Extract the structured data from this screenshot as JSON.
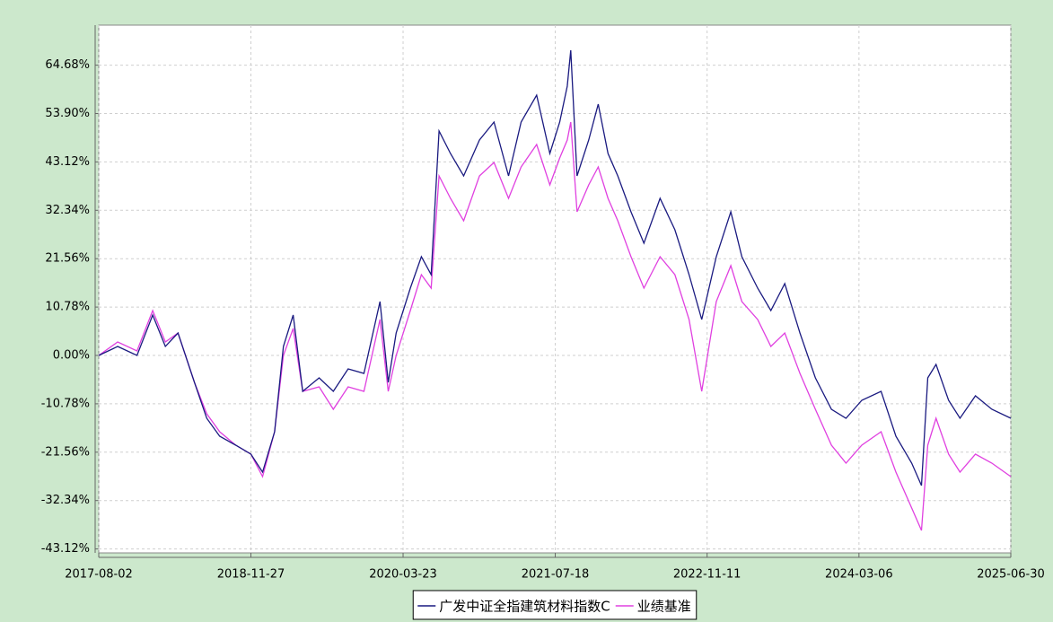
{
  "chart_data": {
    "type": "line",
    "x": [
      "2017-08-02",
      "2017-10-01",
      "2017-12-01",
      "2018-01-20",
      "2018-03-01",
      "2018-04-10",
      "2018-06-01",
      "2018-07-10",
      "2018-08-20",
      "2018-10-10",
      "2018-11-27",
      "2019-01-03",
      "2019-02-10",
      "2019-03-10",
      "2019-04-10",
      "2019-05-10",
      "2019-07-01",
      "2019-08-15",
      "2019-10-01",
      "2019-11-20",
      "2020-01-10",
      "2020-02-05",
      "2020-03-01",
      "2020-04-15",
      "2020-05-20",
      "2020-06-20",
      "2020-07-15",
      "2020-08-20",
      "2020-10-01",
      "2020-11-20",
      "2021-01-05",
      "2021-02-20",
      "2021-04-01",
      "2021-05-20",
      "2021-07-01",
      "2021-08-01",
      "2021-08-25",
      "2021-09-05",
      "2021-09-25",
      "2021-11-01",
      "2021-12-01",
      "2022-01-01",
      "2022-02-01",
      "2022-03-15",
      "2022-04-25",
      "2022-06-15",
      "2022-08-01",
      "2022-09-15",
      "2022-10-25",
      "2022-12-10",
      "2023-01-25",
      "2023-03-01",
      "2023-04-20",
      "2023-06-01",
      "2023-07-15",
      "2023-09-01",
      "2023-10-20",
      "2023-12-10",
      "2024-01-25",
      "2024-03-15",
      "2024-05-15",
      "2024-07-01",
      "2024-08-20",
      "2024-09-20",
      "2024-10-10",
      "2024-11-05",
      "2024-12-15",
      "2025-01-20",
      "2025-03-10",
      "2025-05-01",
      "2025-06-30"
    ],
    "series": [
      {
        "name": "广发中证全指建筑材料指数C",
        "color": "#1a1a80",
        "values": [
          0,
          2,
          0,
          9,
          2,
          5,
          -6,
          -14,
          -18,
          -20,
          -22,
          -26,
          -17,
          2,
          9,
          -8,
          -5,
          -8,
          -3,
          -4,
          12,
          -6,
          5,
          15,
          22,
          18,
          50,
          45,
          40,
          48,
          52,
          40,
          52,
          58,
          45,
          52,
          60,
          68,
          40,
          48,
          56,
          45,
          40,
          32,
          25,
          35,
          28,
          18,
          8,
          22,
          32,
          22,
          15,
          10,
          16,
          5,
          -5,
          -12,
          -14,
          -10,
          -8,
          -18,
          -24,
          -29,
          -5,
          -2,
          -10,
          -14,
          -9,
          -12,
          -14
        ]
      },
      {
        "name": "业绩基准",
        "color": "#e040e0",
        "values": [
          0,
          3,
          1,
          10,
          3,
          5,
          -6,
          -13,
          -17,
          -20,
          -22,
          -27,
          -17,
          0,
          6,
          -8,
          -7,
          -12,
          -7,
          -8,
          8,
          -8,
          0,
          10,
          18,
          15,
          40,
          35,
          30,
          40,
          43,
          35,
          42,
          47,
          38,
          44,
          48,
          52,
          32,
          38,
          42,
          35,
          30,
          22,
          15,
          22,
          18,
          8,
          -8,
          12,
          20,
          12,
          8,
          2,
          5,
          -4,
          -12,
          -20,
          -24,
          -20,
          -17,
          -26,
          -34,
          -39,
          -20,
          -14,
          -22,
          -26,
          -22,
          -24,
          -27
        ]
      }
    ],
    "xlim": [
      "2017-08-02",
      "2025-06-30"
    ],
    "xticks": [
      "2017-08-02",
      "2018-11-27",
      "2020-03-23",
      "2021-07-18",
      "2022-11-11",
      "2024-03-06",
      "2025-06-30"
    ],
    "ylim": [
      -44,
      73.6
    ],
    "yticks": [
      {
        "value": -43.12,
        "label": "-43.12%"
      },
      {
        "value": -32.34,
        "label": "-32.34%"
      },
      {
        "value": -21.56,
        "label": "-21.56%"
      },
      {
        "value": -10.78,
        "label": "-10.78%"
      },
      {
        "value": 0,
        "label": "0.00%"
      },
      {
        "value": 10.78,
        "label": "10.78%"
      },
      {
        "value": 21.56,
        "label": "21.56%"
      },
      {
        "value": 32.34,
        "label": "32.34%"
      },
      {
        "value": 43.12,
        "label": "43.12%"
      },
      {
        "value": 53.9,
        "label": "53.90%"
      },
      {
        "value": 64.68,
        "label": "64.68%"
      }
    ],
    "grid": true
  }
}
